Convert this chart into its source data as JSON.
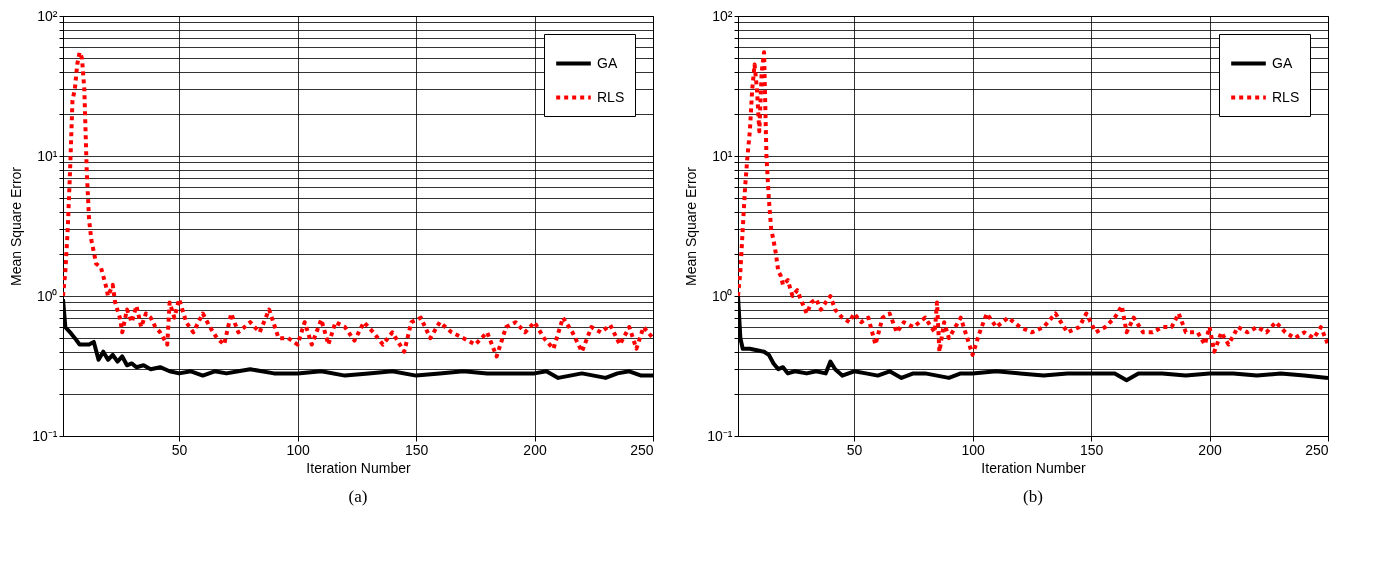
{
  "chart_data": [
    {
      "type": "line",
      "xlabel": "Iteration Number",
      "ylabel": "Mean Square Error",
      "annotations": [
        "(a)"
      ],
      "log": true,
      "grid": true,
      "legend": "top right",
      "xlim": [
        1,
        250
      ],
      "xticks": [
        50,
        100,
        150,
        200,
        250
      ],
      "ylim": [
        0.1,
        100
      ],
      "yticks": [
        {
          "value": 0.1,
          "label": "10⁻¹"
        },
        {
          "value": 0.2,
          "label": null
        },
        {
          "value": 0.3,
          "label": null
        },
        {
          "value": 0.4,
          "label": null
        },
        {
          "value": 0.5,
          "label": null
        },
        {
          "value": 0.6,
          "label": null
        },
        {
          "value": 0.7,
          "label": null
        },
        {
          "value": 0.8,
          "label": null
        },
        {
          "value": 0.9,
          "label": null
        },
        {
          "value": 1,
          "label": "10⁰"
        },
        {
          "value": 2,
          "label": null
        },
        {
          "value": 3,
          "label": null
        },
        {
          "value": 4,
          "label": null
        },
        {
          "value": 5,
          "label": null
        },
        {
          "value": 6,
          "label": null
        },
        {
          "value": 7,
          "label": null
        },
        {
          "value": 8,
          "label": null
        },
        {
          "value": 9,
          "label": null
        },
        {
          "value": 10,
          "label": "10¹"
        },
        {
          "value": 20,
          "label": null
        },
        {
          "value": 30,
          "label": null
        },
        {
          "value": 40,
          "label": null
        },
        {
          "value": 50,
          "label": null
        },
        {
          "value": 60,
          "label": null
        },
        {
          "value": 70,
          "label": null
        },
        {
          "value": 80,
          "label": null
        },
        {
          "value": 90,
          "label": null
        },
        {
          "value": 100,
          "label": "10²"
        }
      ],
      "series": [
        {
          "name": "GA",
          "color": "#000000",
          "line_style": "solid",
          "x": [
            1,
            2,
            4,
            6,
            8,
            10,
            12,
            14,
            16,
            18,
            20,
            22,
            24,
            26,
            28,
            30,
            32,
            35,
            38,
            42,
            46,
            50,
            55,
            60,
            65,
            70,
            75,
            80,
            90,
            100,
            110,
            120,
            130,
            140,
            150,
            160,
            170,
            180,
            190,
            200,
            205,
            210,
            215,
            220,
            225,
            230,
            235,
            240,
            245,
            250
          ],
          "values": [
            0.95,
            0.6,
            0.55,
            0.5,
            0.45,
            0.45,
            0.45,
            0.47,
            0.35,
            0.4,
            0.35,
            0.38,
            0.34,
            0.37,
            0.32,
            0.33,
            0.31,
            0.32,
            0.3,
            0.31,
            0.29,
            0.28,
            0.29,
            0.27,
            0.29,
            0.28,
            0.29,
            0.3,
            0.28,
            0.28,
            0.29,
            0.27,
            0.28,
            0.29,
            0.27,
            0.28,
            0.29,
            0.28,
            0.28,
            0.28,
            0.29,
            0.26,
            0.27,
            0.28,
            0.27,
            0.26,
            0.28,
            0.29,
            0.27,
            0.27
          ]
        },
        {
          "name": "RLS",
          "color": "#ff0000",
          "line_style": "dotted",
          "x": [
            1,
            2,
            3,
            4,
            5,
            6,
            7,
            8,
            9,
            10,
            11,
            12,
            13,
            15,
            17,
            19,
            20,
            22,
            23,
            25,
            26,
            28,
            30,
            32,
            34,
            36,
            38,
            40,
            42,
            45,
            46,
            48,
            50,
            53,
            56,
            60,
            63,
            66,
            69,
            72,
            75,
            80,
            84,
            88,
            92,
            96,
            100,
            103,
            106,
            110,
            113,
            116,
            120,
            124,
            128,
            132,
            136,
            140,
            145,
            148,
            152,
            156,
            160,
            165,
            170,
            175,
            180,
            184,
            188,
            192,
            196,
            200,
            204,
            208,
            212,
            216,
            220,
            224,
            228,
            232,
            236,
            240,
            243,
            246,
            250
          ],
          "values": [
            1.0,
            1.5,
            3,
            8,
            25,
            30,
            45,
            55,
            50,
            30,
            8,
            3.5,
            2.5,
            1.7,
            1.6,
            1.2,
            1.0,
            1.2,
            0.9,
            0.7,
            0.55,
            0.8,
            0.65,
            0.85,
            0.6,
            0.75,
            0.7,
            0.6,
            0.55,
            0.45,
            0.9,
            0.7,
            0.95,
            0.65,
            0.55,
            0.75,
            0.6,
            0.5,
            0.45,
            0.75,
            0.55,
            0.65,
            0.55,
            0.8,
            0.5,
            0.5,
            0.45,
            0.65,
            0.45,
            0.68,
            0.45,
            0.65,
            0.6,
            0.48,
            0.65,
            0.55,
            0.45,
            0.55,
            0.4,
            0.65,
            0.7,
            0.5,
            0.65,
            0.55,
            0.5,
            0.45,
            0.55,
            0.37,
            0.6,
            0.65,
            0.55,
            0.65,
            0.5,
            0.42,
            0.7,
            0.55,
            0.4,
            0.6,
            0.55,
            0.62,
            0.45,
            0.6,
            0.42,
            0.6,
            0.5
          ]
        }
      ]
    },
    {
      "type": "line",
      "xlabel": "Iteration Number",
      "ylabel": "Mean Square Error",
      "annotations": [
        "(b)"
      ],
      "log": true,
      "grid": true,
      "legend": "top right",
      "xlim": [
        1,
        250
      ],
      "xticks": [
        50,
        100,
        150,
        200,
        250
      ],
      "ylim": [
        0.1,
        100
      ],
      "yticks": [
        {
          "value": 0.1,
          "label": "10⁻¹"
        },
        {
          "value": 0.2,
          "label": null
        },
        {
          "value": 0.3,
          "label": null
        },
        {
          "value": 0.4,
          "label": null
        },
        {
          "value": 0.5,
          "label": null
        },
        {
          "value": 0.6,
          "label": null
        },
        {
          "value": 0.7,
          "label": null
        },
        {
          "value": 0.8,
          "label": null
        },
        {
          "value": 0.9,
          "label": null
        },
        {
          "value": 1,
          "label": "10⁰"
        },
        {
          "value": 2,
          "label": null
        },
        {
          "value": 3,
          "label": null
        },
        {
          "value": 4,
          "label": null
        },
        {
          "value": 5,
          "label": null
        },
        {
          "value": 6,
          "label": null
        },
        {
          "value": 7,
          "label": null
        },
        {
          "value": 8,
          "label": null
        },
        {
          "value": 9,
          "label": null
        },
        {
          "value": 10,
          "label": "10¹"
        },
        {
          "value": 20,
          "label": null
        },
        {
          "value": 30,
          "label": null
        },
        {
          "value": 40,
          "label": null
        },
        {
          "value": 50,
          "label": null
        },
        {
          "value": 60,
          "label": null
        },
        {
          "value": 70,
          "label": null
        },
        {
          "value": 80,
          "label": null
        },
        {
          "value": 90,
          "label": null
        },
        {
          "value": 100,
          "label": "10²"
        }
      ],
      "series": [
        {
          "name": "GA",
          "color": "#000000",
          "line_style": "solid",
          "x": [
            1,
            2,
            3,
            6,
            9,
            12,
            14,
            16,
            18,
            20,
            22,
            25,
            30,
            34,
            38,
            40,
            42,
            45,
            50,
            55,
            60,
            65,
            70,
            75,
            80,
            85,
            90,
            95,
            100,
            110,
            120,
            130,
            140,
            150,
            160,
            165,
            170,
            180,
            190,
            200,
            210,
            220,
            230,
            240,
            250
          ],
          "values": [
            1.0,
            0.5,
            0.42,
            0.42,
            0.41,
            0.4,
            0.38,
            0.33,
            0.3,
            0.31,
            0.28,
            0.29,
            0.28,
            0.29,
            0.28,
            0.34,
            0.3,
            0.27,
            0.29,
            0.28,
            0.27,
            0.29,
            0.26,
            0.28,
            0.28,
            0.27,
            0.26,
            0.28,
            0.28,
            0.29,
            0.28,
            0.27,
            0.28,
            0.28,
            0.28,
            0.25,
            0.28,
            0.28,
            0.27,
            0.28,
            0.28,
            0.27,
            0.28,
            0.27,
            0.26
          ]
        },
        {
          "name": "RLS",
          "color": "#ff0000",
          "line_style": "dotted",
          "x": [
            1,
            2,
            3,
            4,
            5,
            6,
            7,
            8,
            9,
            10,
            11,
            12,
            13,
            14,
            15,
            16,
            17,
            18,
            19,
            20,
            22,
            24,
            26,
            28,
            30,
            32,
            34,
            36,
            38,
            40,
            42,
            45,
            48,
            50,
            53,
            56,
            59,
            62,
            65,
            68,
            71,
            75,
            80,
            84,
            85,
            86,
            88,
            90,
            95,
            100,
            103,
            106,
            110,
            115,
            120,
            125,
            130,
            135,
            140,
            145,
            148,
            152,
            156,
            160,
            163,
            165,
            168,
            172,
            176,
            180,
            184,
            187,
            190,
            195,
            198,
            200,
            202,
            205,
            208,
            212,
            216,
            220,
            224,
            228,
            232,
            236,
            240,
            244,
            247,
            250
          ],
          "values": [
            1.0,
            1.5,
            3,
            6,
            10,
            15,
            30,
            45,
            30,
            15,
            40,
            55,
            10,
            5,
            3,
            2.5,
            2.0,
            1.5,
            1.4,
            1.2,
            1.3,
            1.0,
            1.1,
            0.9,
            0.75,
            0.9,
            0.95,
            0.8,
            0.9,
            1.0,
            0.8,
            0.7,
            0.65,
            0.75,
            0.65,
            0.7,
            0.45,
            0.7,
            0.75,
            0.55,
            0.65,
            0.6,
            0.7,
            0.55,
            0.9,
            0.4,
            0.65,
            0.5,
            0.7,
            0.38,
            0.55,
            0.75,
            0.6,
            0.7,
            0.6,
            0.55,
            0.6,
            0.75,
            0.55,
            0.6,
            0.75,
            0.55,
            0.6,
            0.7,
            0.85,
            0.55,
            0.7,
            0.55,
            0.55,
            0.6,
            0.6,
            0.75,
            0.55,
            0.55,
            0.45,
            0.6,
            0.4,
            0.55,
            0.45,
            0.6,
            0.55,
            0.6,
            0.55,
            0.65,
            0.55,
            0.5,
            0.55,
            0.5,
            0.6,
            0.45
          ]
        }
      ]
    }
  ]
}
